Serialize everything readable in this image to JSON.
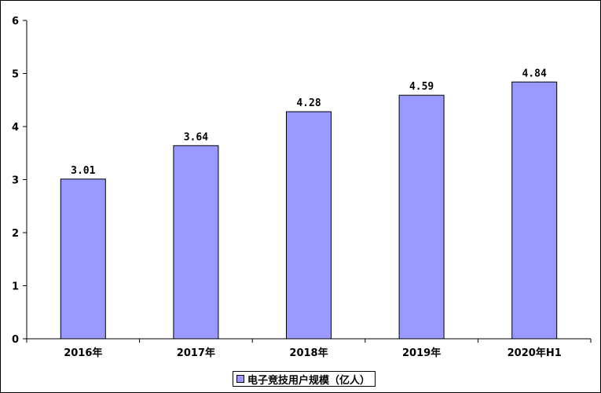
{
  "chart_data": {
    "type": "bar",
    "categories": [
      "2016年",
      "2017年",
      "2018年",
      "2019年",
      "2020年H1"
    ],
    "series": [
      {
        "name": "电子竞技用户规模（亿人）",
        "values": [
          3.01,
          3.64,
          4.28,
          4.59,
          4.84
        ],
        "labels": [
          "3.01",
          "3.64",
          "4.28",
          "4.59",
          "4.84"
        ]
      }
    ],
    "ylim": [
      0,
      6
    ],
    "yticks": [
      "0",
      "1",
      "2",
      "3",
      "4",
      "5",
      "6"
    ],
    "grid": false,
    "legend": "bottom",
    "colors": {
      "bar": "#9999ff",
      "axis": "#000000"
    }
  }
}
